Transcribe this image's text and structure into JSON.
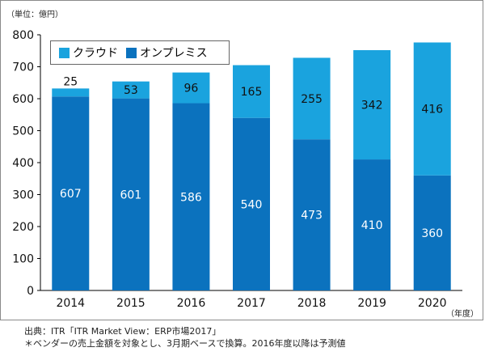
{
  "unit_label": "（単位：億円）",
  "year_unit_label": "（年度）",
  "source": "出典：ITR「ITR Market View：ERP市場2017」",
  "note": "＊ベンダーの売上金額を対象とし、3月期ベースで換算。2016年度以降は予測値",
  "colors": {
    "cloud": "#1aa3de",
    "onprem": "#0b72be",
    "text_on_onprem": "#ffffff",
    "text_on_cloud": "#111111"
  },
  "chart_data": {
    "type": "bar",
    "stacked": true,
    "categories": [
      "2014",
      "2015",
      "2016",
      "2017",
      "2018",
      "2019",
      "2020"
    ],
    "series": [
      {
        "name": "オンプレミス",
        "values": [
          607,
          601,
          586,
          540,
          473,
          410,
          360
        ]
      },
      {
        "name": "クラウド",
        "values": [
          25,
          53,
          96,
          165,
          255,
          342,
          416
        ]
      }
    ],
    "legend": [
      "クラウド",
      "オンプレミス"
    ],
    "legend_position": "top-left",
    "ylim": [
      0,
      800
    ],
    "yticks": [
      0,
      100,
      200,
      300,
      400,
      500,
      600,
      700,
      800
    ],
    "grid": false
  }
}
